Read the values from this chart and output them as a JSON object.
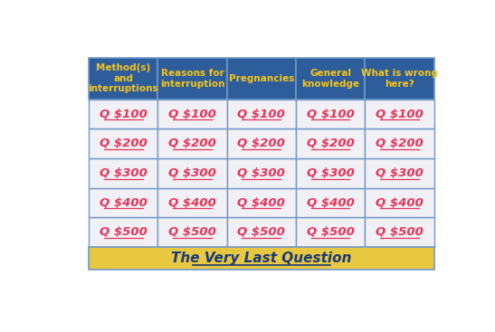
{
  "headers": [
    "Method(s)\nand\ninterruptions",
    "Reasons for\ninterruption",
    "Pregnancies",
    "General\nknowledge",
    "What is wrong\nhere?"
  ],
  "values": [
    "Q $100",
    "Q $200",
    "Q $300",
    "Q $400",
    "Q $500"
  ],
  "header_bg": "#2E5D9B",
  "header_text_color": "#F5C518",
  "cell_bg": "#F0F0F5",
  "cell_text_color": "#E8345A",
  "grid_color": "#7098C8",
  "footer_bg": "#E8C840",
  "footer_text": "The Very Last Question",
  "footer_text_color": "#1A3A7A",
  "outer_bg": "#FFFFFF",
  "n_cols": 5,
  "n_rows": 5
}
